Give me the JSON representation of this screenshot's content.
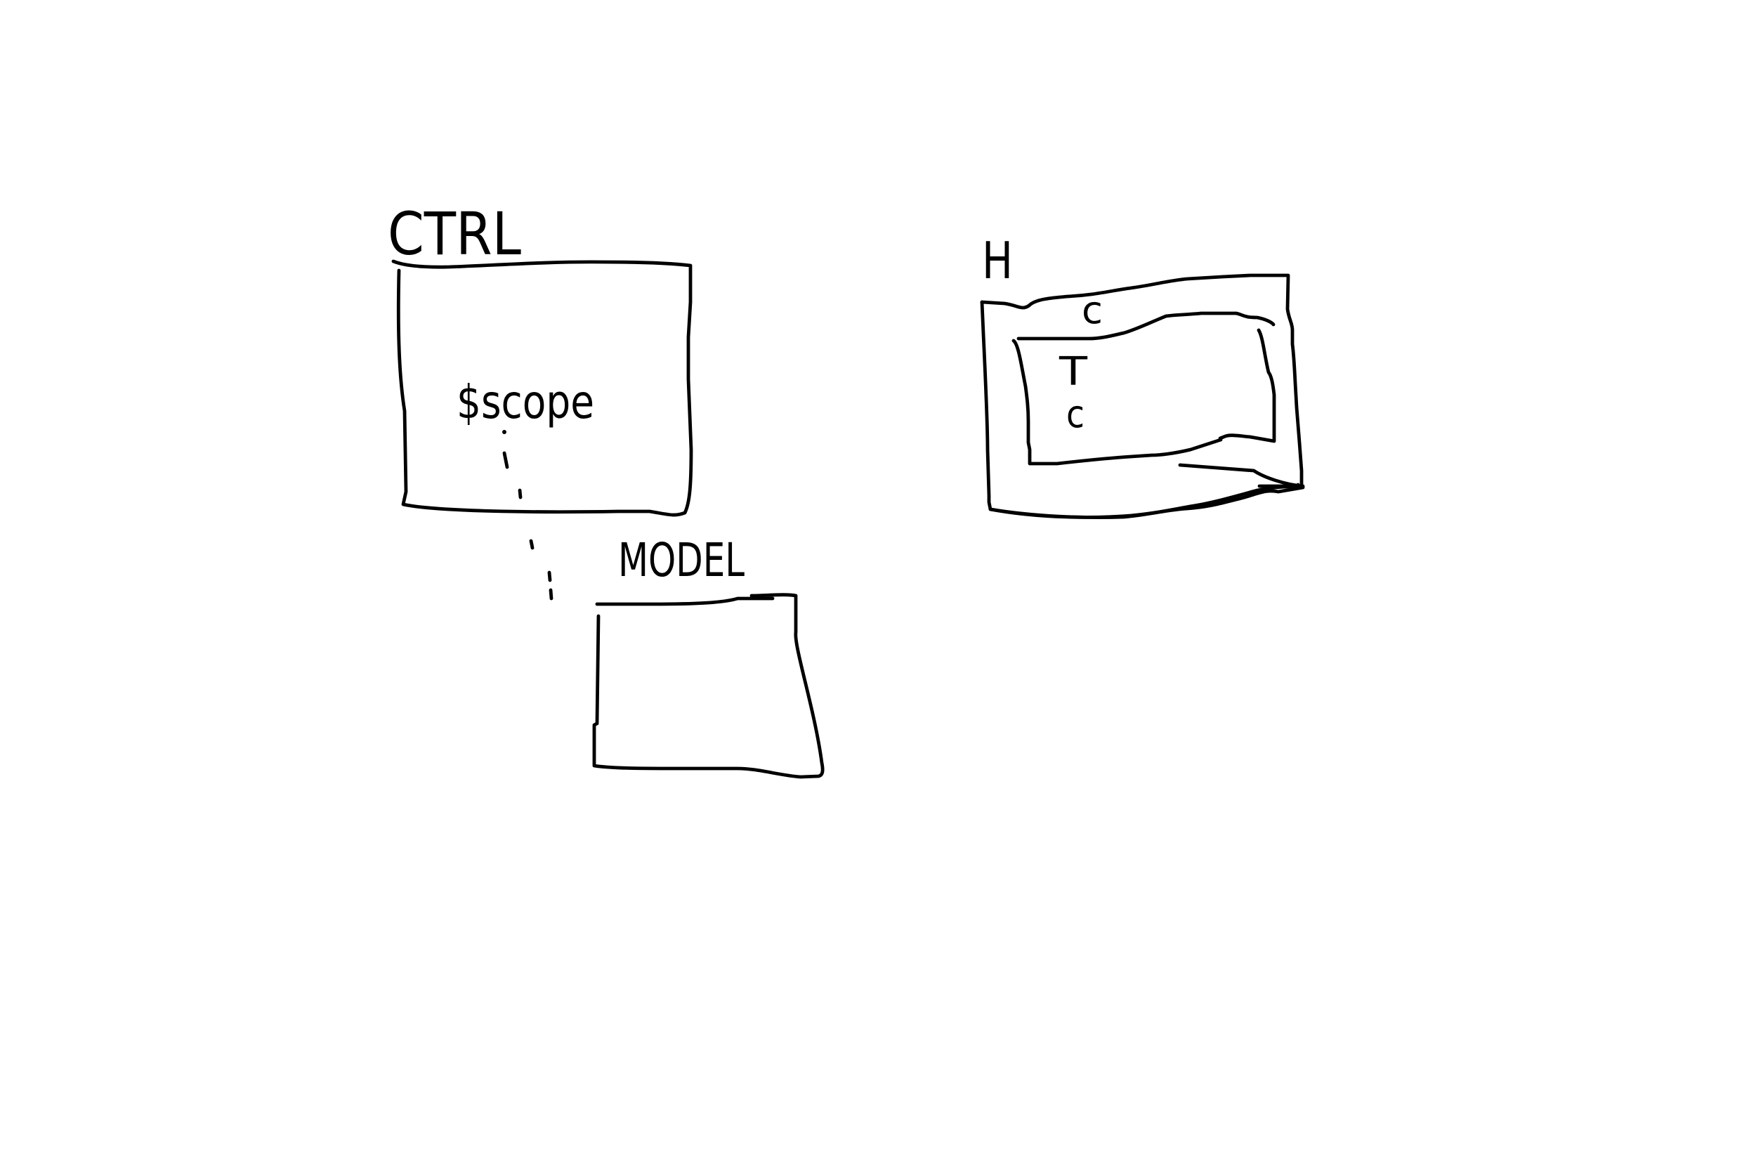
{
  "diagram": {
    "ctrl_box": {
      "label": "CTRL",
      "inner_label": "$scope"
    },
    "model_box": {
      "label": "MODEL"
    },
    "h_box": {
      "label": "H",
      "inner_box": {
        "top_mark": "c",
        "marks": [
          "T",
          "c"
        ]
      }
    },
    "stroke_color": "#000000",
    "background_color": "#ffffff"
  }
}
